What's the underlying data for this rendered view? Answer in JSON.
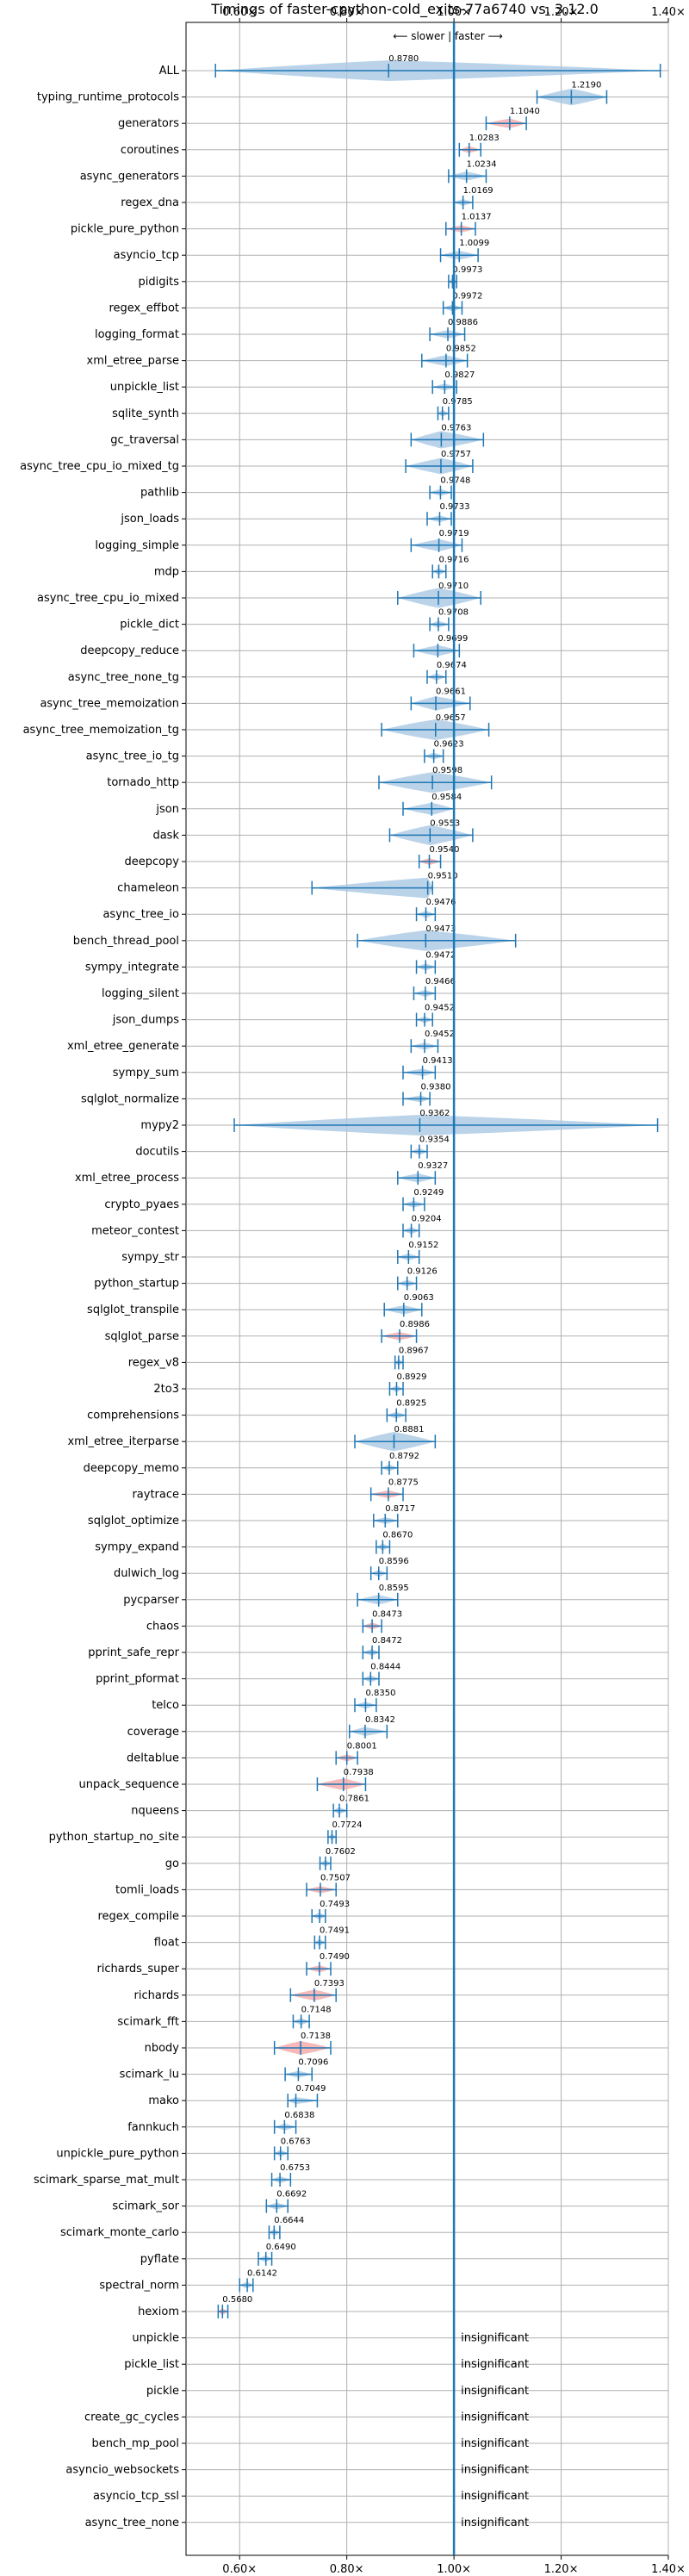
{
  "chart_data": {
    "type": "violin",
    "title": "Timings of faster-cpython-cold_exits-77a6740 vs. 3.12.0",
    "annotation": "⟵ slower | faster ⟶",
    "xlim": [
      0.5,
      1.4
    ],
    "xticks": [
      0.6,
      0.8,
      1.0,
      1.2,
      1.4
    ],
    "xtick_labels": [
      "0.60×",
      "0.80×",
      "1.00×",
      "1.20×",
      "1.40×"
    ],
    "reference_line": 1.0,
    "colors": {
      "violin": "#a9c8e4",
      "highlight": "#f4a6a6",
      "line": "#1f77b4"
    },
    "insignificant_text": "insignificant",
    "benchmarks": [
      {
        "name": "ALL",
        "value": 0.878,
        "label": "0.8780",
        "lo": 0.555,
        "hi": 1.385,
        "hl": false
      },
      {
        "name": "typing_runtime_protocols",
        "value": 1.219,
        "label": "1.2190",
        "lo": 1.155,
        "hi": 1.285,
        "hl": false
      },
      {
        "name": "generators",
        "value": 1.104,
        "label": "1.1040",
        "lo": 1.06,
        "hi": 1.135,
        "hl": true
      },
      {
        "name": "coroutines",
        "value": 1.0283,
        "label": "1.0283",
        "lo": 1.01,
        "hi": 1.05,
        "hl": true
      },
      {
        "name": "async_generators",
        "value": 1.0234,
        "label": "1.0234",
        "lo": 0.99,
        "hi": 1.06,
        "hl": false
      },
      {
        "name": "regex_dna",
        "value": 1.0169,
        "label": "1.0169",
        "lo": 1.0,
        "hi": 1.035,
        "hl": false
      },
      {
        "name": "pickle_pure_python",
        "value": 1.0137,
        "label": "1.0137",
        "lo": 0.985,
        "hi": 1.04,
        "hl": true
      },
      {
        "name": "asyncio_tcp",
        "value": 1.0099,
        "label": "1.0099",
        "lo": 0.975,
        "hi": 1.045,
        "hl": false
      },
      {
        "name": "pidigits",
        "value": 0.9973,
        "label": "0.9973",
        "lo": 0.99,
        "hi": 1.005,
        "hl": false
      },
      {
        "name": "regex_effbot",
        "value": 0.9972,
        "label": "0.9972",
        "lo": 0.98,
        "hi": 1.015,
        "hl": false
      },
      {
        "name": "logging_format",
        "value": 0.9886,
        "label": "0.9886",
        "lo": 0.955,
        "hi": 1.02,
        "hl": false
      },
      {
        "name": "xml_etree_parse",
        "value": 0.9852,
        "label": "0.9852",
        "lo": 0.94,
        "hi": 1.025,
        "hl": false
      },
      {
        "name": "unpickle_list",
        "value": 0.9827,
        "label": "0.9827",
        "lo": 0.96,
        "hi": 1.005,
        "hl": false
      },
      {
        "name": "sqlite_synth",
        "value": 0.9785,
        "label": "0.9785",
        "lo": 0.97,
        "hi": 0.99,
        "hl": false
      },
      {
        "name": "gc_traversal",
        "value": 0.9763,
        "label": "0.9763",
        "lo": 0.92,
        "hi": 1.055,
        "hl": false
      },
      {
        "name": "async_tree_cpu_io_mixed_tg",
        "value": 0.9757,
        "label": "0.9757",
        "lo": 0.91,
        "hi": 1.035,
        "hl": false
      },
      {
        "name": "pathlib",
        "value": 0.9748,
        "label": "0.9748",
        "lo": 0.955,
        "hi": 0.995,
        "hl": false
      },
      {
        "name": "json_loads",
        "value": 0.9733,
        "label": "0.9733",
        "lo": 0.95,
        "hi": 0.995,
        "hl": false
      },
      {
        "name": "logging_simple",
        "value": 0.9719,
        "label": "0.9719",
        "lo": 0.92,
        "hi": 1.015,
        "hl": false
      },
      {
        "name": "mdp",
        "value": 0.9716,
        "label": "0.9716",
        "lo": 0.96,
        "hi": 0.985,
        "hl": false
      },
      {
        "name": "async_tree_cpu_io_mixed",
        "value": 0.971,
        "label": "0.9710",
        "lo": 0.895,
        "hi": 1.05,
        "hl": false
      },
      {
        "name": "pickle_dict",
        "value": 0.9708,
        "label": "0.9708",
        "lo": 0.955,
        "hi": 0.99,
        "hl": false
      },
      {
        "name": "deepcopy_reduce",
        "value": 0.9699,
        "label": "0.9699",
        "lo": 0.925,
        "hi": 1.01,
        "hl": false
      },
      {
        "name": "async_tree_none_tg",
        "value": 0.9674,
        "label": "0.9674",
        "lo": 0.95,
        "hi": 0.985,
        "hl": false
      },
      {
        "name": "async_tree_memoization",
        "value": 0.9661,
        "label": "0.9661",
        "lo": 0.92,
        "hi": 1.03,
        "hl": false
      },
      {
        "name": "async_tree_memoization_tg",
        "value": 0.9657,
        "label": "0.9657",
        "lo": 0.865,
        "hi": 1.065,
        "hl": false
      },
      {
        "name": "async_tree_io_tg",
        "value": 0.9623,
        "label": "0.9623",
        "lo": 0.945,
        "hi": 0.98,
        "hl": false
      },
      {
        "name": "tornado_http",
        "value": 0.9598,
        "label": "0.9598",
        "lo": 0.86,
        "hi": 1.07,
        "hl": false
      },
      {
        "name": "json",
        "value": 0.9584,
        "label": "0.9584",
        "lo": 0.905,
        "hi": 1.0,
        "hl": false
      },
      {
        "name": "dask",
        "value": 0.9553,
        "label": "0.9553",
        "lo": 0.88,
        "hi": 1.035,
        "hl": false
      },
      {
        "name": "deepcopy",
        "value": 0.954,
        "label": "0.9540",
        "lo": 0.935,
        "hi": 0.975,
        "hl": true
      },
      {
        "name": "chameleon",
        "value": 0.951,
        "label": "0.9510",
        "lo": 0.735,
        "hi": 0.96,
        "hl": false
      },
      {
        "name": "async_tree_io",
        "value": 0.9476,
        "label": "0.9476",
        "lo": 0.93,
        "hi": 0.965,
        "hl": false
      },
      {
        "name": "bench_thread_pool",
        "value": 0.9473,
        "label": "0.9473",
        "lo": 0.82,
        "hi": 1.115,
        "hl": false
      },
      {
        "name": "sympy_integrate",
        "value": 0.9472,
        "label": "0.9472",
        "lo": 0.93,
        "hi": 0.965,
        "hl": false
      },
      {
        "name": "logging_silent",
        "value": 0.9466,
        "label": "0.9466",
        "lo": 0.925,
        "hi": 0.965,
        "hl": false
      },
      {
        "name": "json_dumps",
        "value": 0.9452,
        "label": "0.9452",
        "lo": 0.93,
        "hi": 0.96,
        "hl": false
      },
      {
        "name": "xml_etree_generate",
        "value": 0.9452,
        "label": "0.9452",
        "lo": 0.92,
        "hi": 0.97,
        "hl": false
      },
      {
        "name": "sympy_sum",
        "value": 0.9413,
        "label": "0.9413",
        "lo": 0.905,
        "hi": 0.965,
        "hl": false
      },
      {
        "name": "sqlglot_normalize",
        "value": 0.938,
        "label": "0.9380",
        "lo": 0.905,
        "hi": 0.955,
        "hl": false
      },
      {
        "name": "mypy2",
        "value": 0.9362,
        "label": "0.9362",
        "lo": 0.59,
        "hi": 1.38,
        "hl": false
      },
      {
        "name": "docutils",
        "value": 0.9354,
        "label": "0.9354",
        "lo": 0.92,
        "hi": 0.95,
        "hl": false
      },
      {
        "name": "xml_etree_process",
        "value": 0.9327,
        "label": "0.9327",
        "lo": 0.895,
        "hi": 0.965,
        "hl": false
      },
      {
        "name": "crypto_pyaes",
        "value": 0.9249,
        "label": "0.9249",
        "lo": 0.905,
        "hi": 0.945,
        "hl": false
      },
      {
        "name": "meteor_contest",
        "value": 0.9204,
        "label": "0.9204",
        "lo": 0.905,
        "hi": 0.935,
        "hl": false
      },
      {
        "name": "sympy_str",
        "value": 0.9152,
        "label": "0.9152",
        "lo": 0.895,
        "hi": 0.935,
        "hl": false
      },
      {
        "name": "python_startup",
        "value": 0.9126,
        "label": "0.9126",
        "lo": 0.895,
        "hi": 0.93,
        "hl": false
      },
      {
        "name": "sqlglot_transpile",
        "value": 0.9063,
        "label": "0.9063",
        "lo": 0.87,
        "hi": 0.94,
        "hl": false
      },
      {
        "name": "sqlglot_parse",
        "value": 0.8986,
        "label": "0.8986",
        "lo": 0.865,
        "hi": 0.93,
        "hl": true
      },
      {
        "name": "regex_v8",
        "value": 0.8967,
        "label": "0.8967",
        "lo": 0.89,
        "hi": 0.905,
        "hl": false
      },
      {
        "name": "2to3",
        "value": 0.8929,
        "label": "0.8929",
        "lo": 0.88,
        "hi": 0.905,
        "hl": false
      },
      {
        "name": "comprehensions",
        "value": 0.8925,
        "label": "0.8925",
        "lo": 0.875,
        "hi": 0.91,
        "hl": false
      },
      {
        "name": "xml_etree_iterparse",
        "value": 0.8881,
        "label": "0.8881",
        "lo": 0.815,
        "hi": 0.965,
        "hl": false
      },
      {
        "name": "deepcopy_memo",
        "value": 0.8792,
        "label": "0.8792",
        "lo": 0.865,
        "hi": 0.895,
        "hl": false
      },
      {
        "name": "raytrace",
        "value": 0.8775,
        "label": "0.8775",
        "lo": 0.845,
        "hi": 0.905,
        "hl": true
      },
      {
        "name": "sqlglot_optimize",
        "value": 0.8717,
        "label": "0.8717",
        "lo": 0.85,
        "hi": 0.895,
        "hl": false
      },
      {
        "name": "sympy_expand",
        "value": 0.867,
        "label": "0.8670",
        "lo": 0.855,
        "hi": 0.88,
        "hl": false
      },
      {
        "name": "dulwich_log",
        "value": 0.8596,
        "label": "0.8596",
        "lo": 0.845,
        "hi": 0.875,
        "hl": false
      },
      {
        "name": "pycparser",
        "value": 0.8595,
        "label": "0.8595",
        "lo": 0.82,
        "hi": 0.895,
        "hl": false
      },
      {
        "name": "chaos",
        "value": 0.8473,
        "label": "0.8473",
        "lo": 0.83,
        "hi": 0.865,
        "hl": true
      },
      {
        "name": "pprint_safe_repr",
        "value": 0.8472,
        "label": "0.8472",
        "lo": 0.83,
        "hi": 0.86,
        "hl": false
      },
      {
        "name": "pprint_pformat",
        "value": 0.8444,
        "label": "0.8444",
        "lo": 0.83,
        "hi": 0.86,
        "hl": false
      },
      {
        "name": "telco",
        "value": 0.835,
        "label": "0.8350",
        "lo": 0.815,
        "hi": 0.855,
        "hl": false
      },
      {
        "name": "coverage",
        "value": 0.8342,
        "label": "0.8342",
        "lo": 0.805,
        "hi": 0.875,
        "hl": false
      },
      {
        "name": "deltablue",
        "value": 0.8001,
        "label": "0.8001",
        "lo": 0.78,
        "hi": 0.82,
        "hl": true
      },
      {
        "name": "unpack_sequence",
        "value": 0.7938,
        "label": "0.7938",
        "lo": 0.745,
        "hi": 0.835,
        "hl": true
      },
      {
        "name": "nqueens",
        "value": 0.7861,
        "label": "0.7861",
        "lo": 0.775,
        "hi": 0.8,
        "hl": false
      },
      {
        "name": "python_startup_no_site",
        "value": 0.7724,
        "label": "0.7724",
        "lo": 0.765,
        "hi": 0.78,
        "hl": false
      },
      {
        "name": "go",
        "value": 0.7602,
        "label": "0.7602",
        "lo": 0.75,
        "hi": 0.77,
        "hl": false
      },
      {
        "name": "tomli_loads",
        "value": 0.7507,
        "label": "0.7507",
        "lo": 0.725,
        "hi": 0.78,
        "hl": true
      },
      {
        "name": "regex_compile",
        "value": 0.7493,
        "label": "0.7493",
        "lo": 0.735,
        "hi": 0.76,
        "hl": false
      },
      {
        "name": "float",
        "value": 0.7491,
        "label": "0.7491",
        "lo": 0.74,
        "hi": 0.76,
        "hl": false
      },
      {
        "name": "richards_super",
        "value": 0.749,
        "label": "0.7490",
        "lo": 0.725,
        "hi": 0.77,
        "hl": true
      },
      {
        "name": "richards",
        "value": 0.7393,
        "label": "0.7393",
        "lo": 0.695,
        "hi": 0.78,
        "hl": true
      },
      {
        "name": "scimark_fft",
        "value": 0.7148,
        "label": "0.7148",
        "lo": 0.7,
        "hi": 0.73,
        "hl": false
      },
      {
        "name": "nbody",
        "value": 0.7138,
        "label": "0.7138",
        "lo": 0.665,
        "hi": 0.77,
        "hl": true
      },
      {
        "name": "scimark_lu",
        "value": 0.7096,
        "label": "0.7096",
        "lo": 0.685,
        "hi": 0.735,
        "hl": false
      },
      {
        "name": "mako",
        "value": 0.7049,
        "label": "0.7049",
        "lo": 0.69,
        "hi": 0.745,
        "hl": false
      },
      {
        "name": "fannkuch",
        "value": 0.6838,
        "label": "0.6838",
        "lo": 0.665,
        "hi": 0.705,
        "hl": false
      },
      {
        "name": "unpickle_pure_python",
        "value": 0.6763,
        "label": "0.6763",
        "lo": 0.665,
        "hi": 0.69,
        "hl": false
      },
      {
        "name": "scimark_sparse_mat_mult",
        "value": 0.6753,
        "label": "0.6753",
        "lo": 0.66,
        "hi": 0.695,
        "hl": false
      },
      {
        "name": "scimark_sor",
        "value": 0.6692,
        "label": "0.6692",
        "lo": 0.65,
        "hi": 0.69,
        "hl": false
      },
      {
        "name": "scimark_monte_carlo",
        "value": 0.6644,
        "label": "0.6644",
        "lo": 0.655,
        "hi": 0.675,
        "hl": false
      },
      {
        "name": "pyflate",
        "value": 0.649,
        "label": "0.6490",
        "lo": 0.635,
        "hi": 0.66,
        "hl": false
      },
      {
        "name": "spectral_norm",
        "value": 0.6142,
        "label": "0.6142",
        "lo": 0.6,
        "hi": 0.625,
        "hl": false
      },
      {
        "name": "hexiom",
        "value": 0.568,
        "label": "0.5680",
        "lo": 0.56,
        "hi": 0.578,
        "hl": true
      },
      {
        "name": "unpickle",
        "value": null,
        "label": "",
        "lo": null,
        "hi": null,
        "hl": false
      },
      {
        "name": "pickle_list",
        "value": null,
        "label": "",
        "lo": null,
        "hi": null,
        "hl": false
      },
      {
        "name": "pickle",
        "value": null,
        "label": "",
        "lo": null,
        "hi": null,
        "hl": false
      },
      {
        "name": "create_gc_cycles",
        "value": null,
        "label": "",
        "lo": null,
        "hi": null,
        "hl": false
      },
      {
        "name": "bench_mp_pool",
        "value": null,
        "label": "",
        "lo": null,
        "hi": null,
        "hl": false
      },
      {
        "name": "asyncio_websockets",
        "value": null,
        "label": "",
        "lo": null,
        "hi": null,
        "hl": false
      },
      {
        "name": "asyncio_tcp_ssl",
        "value": null,
        "label": "",
        "lo": null,
        "hi": null,
        "hl": false
      },
      {
        "name": "async_tree_none",
        "value": null,
        "label": "",
        "lo": null,
        "hi": null,
        "hl": false
      }
    ]
  }
}
